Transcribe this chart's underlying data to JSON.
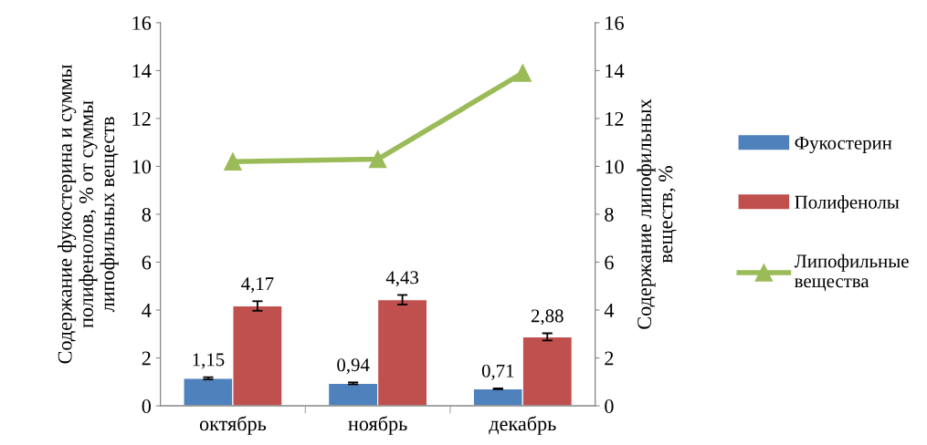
{
  "chart_data": {
    "type": "bar",
    "ylabel": "Содержание фукостерина и суммы\nполифенолов, % от суммы\nлипофильных веществ",
    "y2label": "Содержание липофильных\nвеществ, %",
    "categories": [
      "октябрь",
      "ноябрь",
      "декабрь"
    ],
    "series": [
      {
        "name": "Фукостерин",
        "color": "#4f81bd",
        "values": [
          1.15,
          0.94,
          0.71
        ],
        "errors": [
          0.05,
          0.04,
          0.02
        ],
        "value_labels": [
          "1,15",
          "0,94",
          "0,71"
        ]
      },
      {
        "name": "Полифенолы",
        "color": "#c0504d",
        "values": [
          4.17,
          4.43,
          2.88
        ],
        "errors": [
          0.2,
          0.2,
          0.15
        ],
        "value_labels": [
          "4,17",
          "4,43",
          "2,88"
        ]
      },
      {
        "name": "Липофильные\nвещества",
        "type": "line",
        "axis": "y2",
        "color": "#9bbb59",
        "marker": "triangle",
        "values": [
          10.2,
          10.3,
          13.9
        ]
      }
    ],
    "ylim": [
      0,
      16
    ],
    "yticks": [
      0,
      2,
      4,
      6,
      8,
      10,
      12,
      14,
      16
    ],
    "y2lim": [
      0,
      16
    ],
    "y2ticks": [
      0,
      2,
      4,
      6,
      8,
      10,
      12,
      14,
      16
    ],
    "legend": "right",
    "grid": false
  }
}
